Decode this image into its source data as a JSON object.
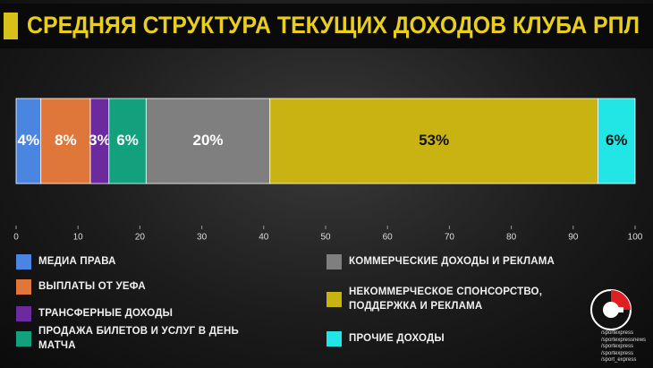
{
  "chart_data": {
    "type": "stacked_bar",
    "orientation": "horizontal",
    "title": "СРЕДНЯЯ СТРУКТУРА ТЕКУЩИХ ДОХОДОВ КЛУБА РПЛ",
    "series": [
      {
        "name": "МЕДИА ПРАВА",
        "color": "#4a86e0",
        "values": [
          4
        ],
        "value_labels": [
          "4%"
        ]
      },
      {
        "name": "ВЫПЛАТЫ ОТ УЕФА",
        "color": "#e0773a",
        "values": [
          8
        ],
        "value_labels": [
          "8%"
        ]
      },
      {
        "name": "ТРАНСФЕРНЫЕ ДОХОДЫ",
        "color": "#6b2a9e",
        "values": [
          3
        ],
        "value_labels": [
          "3%"
        ]
      },
      {
        "name": "ПРОДАЖА БИЛЕТОВ И УСЛУГ В ДЕНЬ МАТЧА",
        "color": "#13a07c",
        "values": [
          6
        ],
        "value_labels": [
          "6%"
        ]
      },
      {
        "name": "КОММЕРЧЕСКИЕ ДОХОДЫ И РЕКЛАМА",
        "color": "#7f7f7f",
        "values": [
          20
        ],
        "value_labels": [
          "20%"
        ]
      },
      {
        "name": "НЕКОММЕРЧЕСКОЕ СПОНСОРСТВО, ПОДДЕРЖКА И РЕКЛАМА",
        "color": "#c8b312",
        "values": [
          53
        ],
        "value_labels": [
          "53%"
        ]
      },
      {
        "name": "ПРОЧИЕ ДОХОДЫ",
        "color": "#22e6e6",
        "values": [
          6
        ],
        "value_labels": [
          "6%"
        ]
      }
    ],
    "xlim": [
      0,
      100
    ],
    "xticks": [
      0,
      10,
      20,
      30,
      40,
      50,
      60,
      70,
      80,
      90,
      100
    ],
    "annotations": [
      "/sportexpress",
      "/sportexpressnews",
      "/sportexpress",
      "/sportexpress",
      "/sport_express"
    ]
  }
}
